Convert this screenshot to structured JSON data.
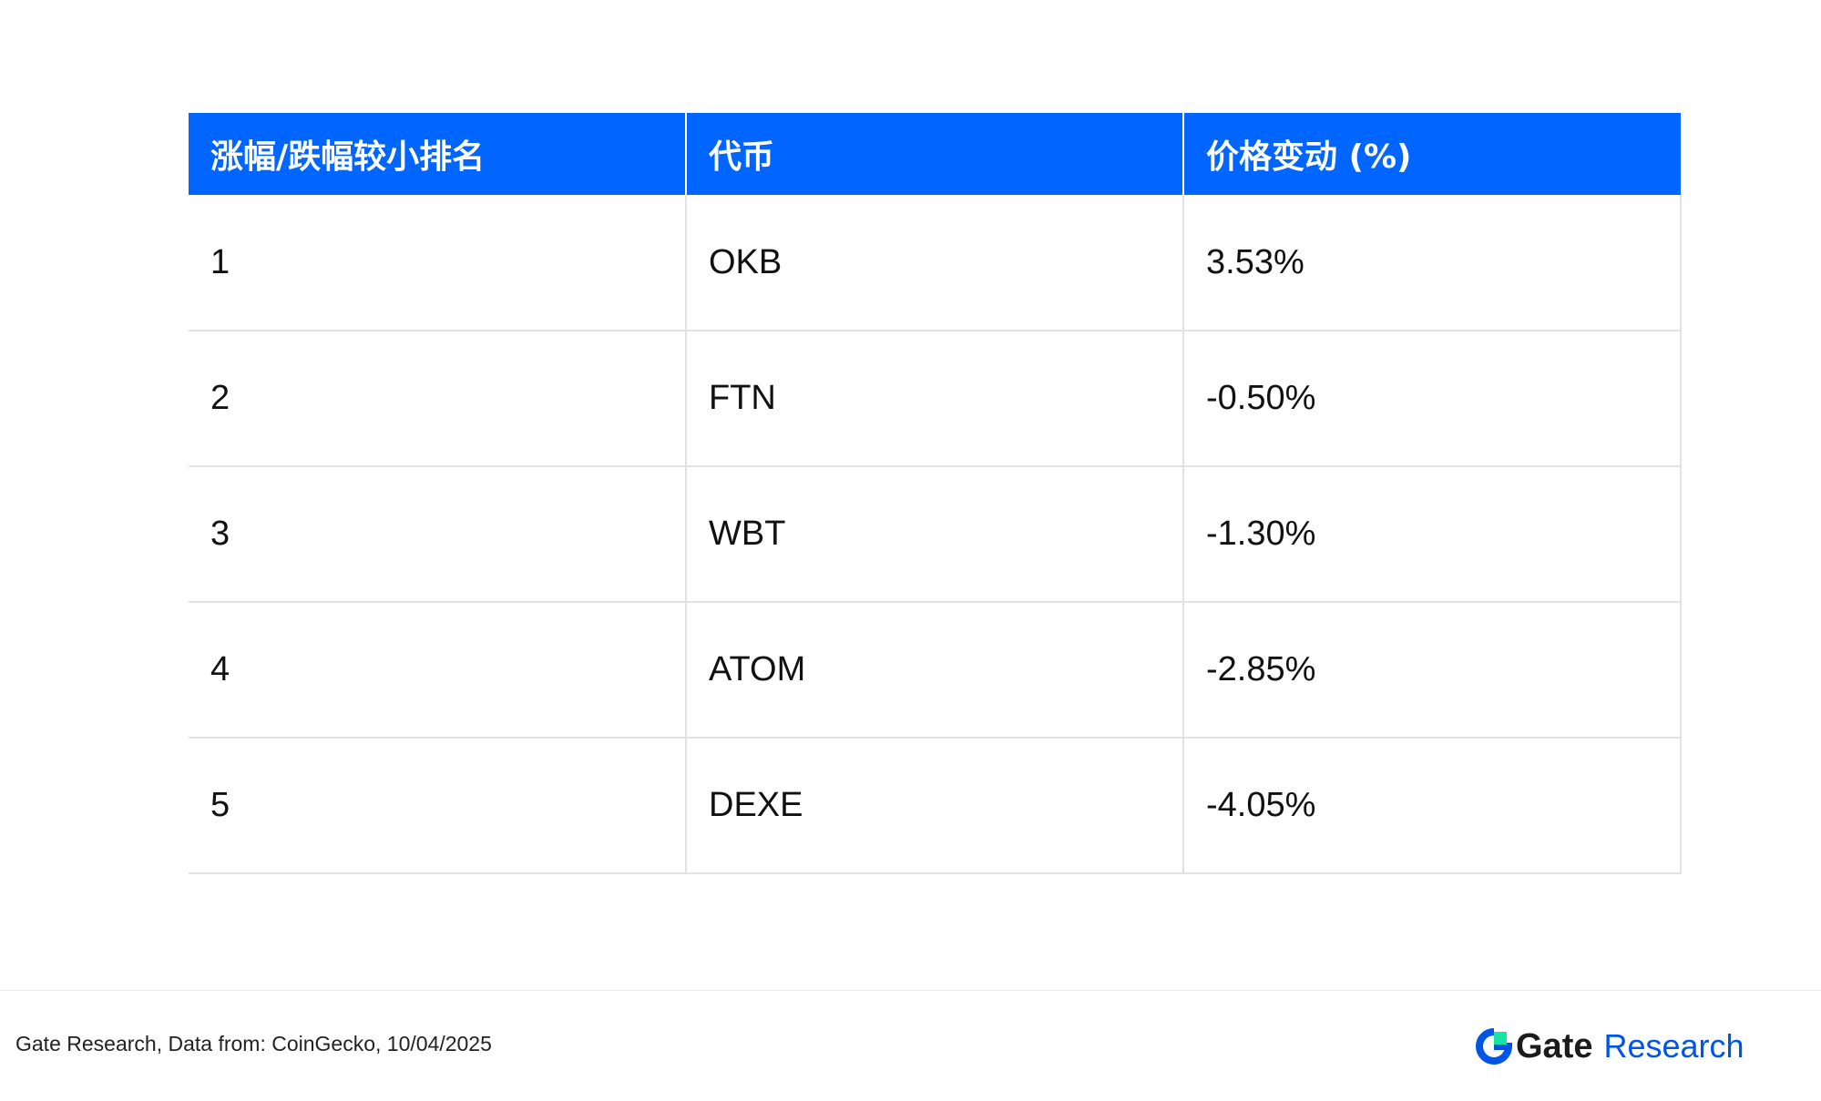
{
  "chart_data": {
    "type": "table",
    "columns": [
      "涨幅/跌幅较小排名",
      "代币",
      "价格变动 (%)"
    ],
    "rows": [
      {
        "rank": "1",
        "token": "OKB",
        "change": "3.53%"
      },
      {
        "rank": "2",
        "token": "FTN",
        "change": "-0.50%"
      },
      {
        "rank": "3",
        "token": "WBT",
        "change": "-1.30%"
      },
      {
        "rank": "4",
        "token": "ATOM",
        "change": "-2.85%"
      },
      {
        "rank": "5",
        "token": "DEXE",
        "change": "-4.05%"
      }
    ],
    "header_color": "#0066ff"
  },
  "footer": {
    "source": "Gate Research, Data from: CoinGecko, 10/04/2025",
    "brand_gate": "Gate",
    "brand_research": "Research",
    "brand_icon": "gate-logo-icon",
    "brand_colors": {
      "blue": "#0055e6",
      "green": "#17e3a3"
    }
  }
}
